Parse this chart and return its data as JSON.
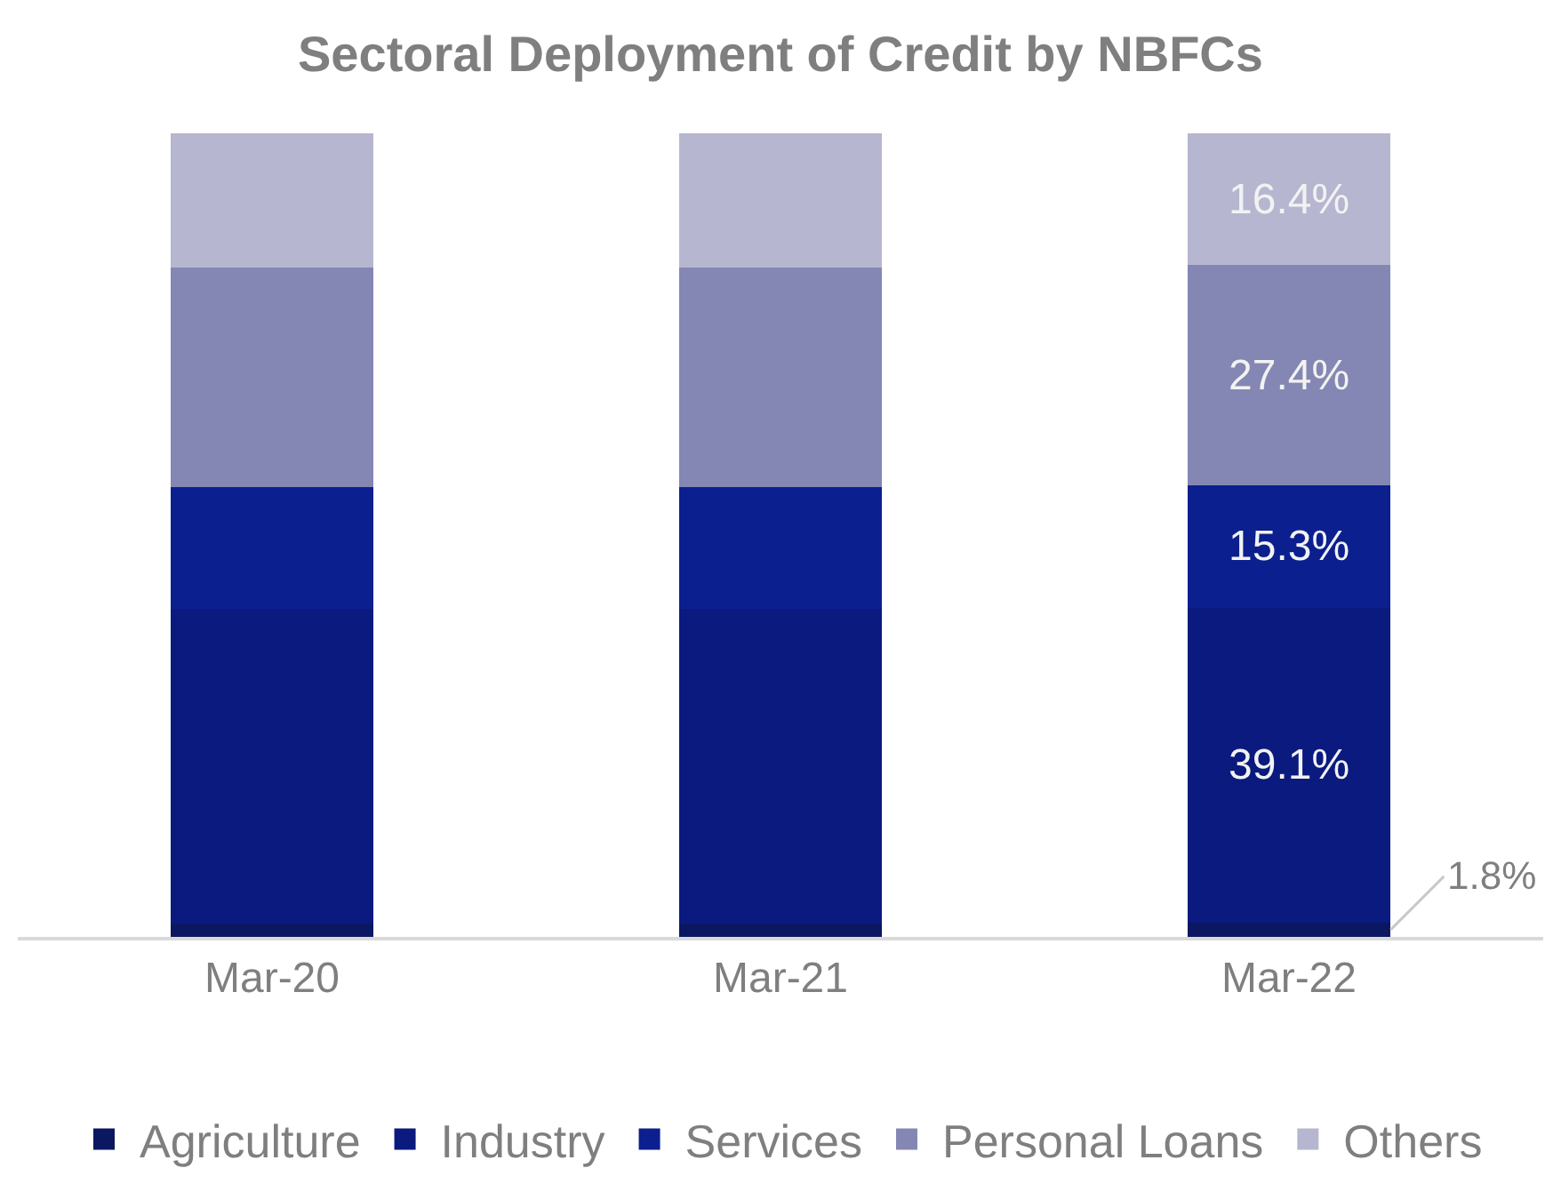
{
  "chart_data": {
    "type": "bar",
    "title": "Sectoral Deployment of Credit by NBFCs",
    "categories": [
      "Mar-20",
      "Mar-21",
      "Mar-22"
    ],
    "stacked": true,
    "legend": "bottom",
    "grid": false,
    "series": [
      {
        "name": "Agriculture",
        "color": "#0b1760",
        "values": [
          1.7,
          1.7,
          1.8
        ],
        "value_labels": [
          null,
          null,
          "1.8%"
        ]
      },
      {
        "name": "Industry",
        "color": "#0a1a7e",
        "values": [
          39.1,
          39.1,
          39.1
        ],
        "value_labels": [
          null,
          null,
          "39.1%"
        ]
      },
      {
        "name": "Services",
        "color": "#0b1f8f",
        "values": [
          15.2,
          15.2,
          15.3
        ],
        "value_labels": [
          null,
          null,
          "15.3%"
        ]
      },
      {
        "name": "Personal Loans",
        "color": "#8487b3",
        "values": [
          27.3,
          27.3,
          27.4
        ],
        "value_labels": [
          null,
          null,
          "27.4%"
        ]
      },
      {
        "name": "Others",
        "color": "#b6b6d0",
        "values": [
          16.7,
          16.7,
          16.4
        ],
        "value_labels": [
          null,
          null,
          "16.4%"
        ]
      }
    ]
  }
}
